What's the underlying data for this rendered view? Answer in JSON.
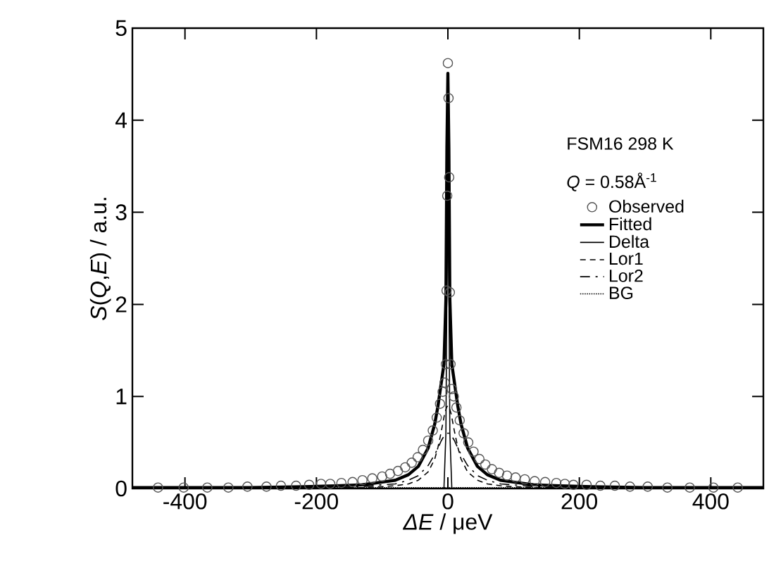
{
  "chart_data": {
    "type": "line",
    "xlabel": "*ΔE* / μeV",
    "ylabel": "*S*(*Q*,*E*) / a.u.",
    "legend_title": "FSM16 298 K",
    "annotations": [
      "*Q* = 0.58Å$^{-1}$"
    ],
    "xlim": [
      -480,
      480
    ],
    "ylim": [
      0,
      5
    ],
    "xticks": [
      -400,
      -200,
      0,
      200,
      400
    ],
    "yticks": [
      0,
      1,
      2,
      3,
      4,
      5
    ],
    "grid": false,
    "legend": "right",
    "series": [
      {
        "name": "Observed",
        "type": "scatter",
        "marker": "circle",
        "color": "#555555",
        "x": [
          -441,
          -402,
          -366,
          -334,
          -305,
          -276,
          -254,
          -231,
          -211,
          -193,
          -179,
          -162,
          -145,
          -130,
          -115,
          -100,
          -88,
          -76,
          -65,
          -55,
          -46,
          -38,
          -30,
          -23,
          -17,
          -12,
          -8,
          -5,
          -3,
          -2,
          -1,
          0,
          1,
          2,
          3,
          4,
          6,
          9,
          13,
          18,
          24,
          31,
          39,
          48,
          57,
          67,
          78,
          90,
          103,
          117,
          132,
          148,
          165,
          178,
          191,
          211,
          232,
          254,
          277,
          304,
          334,
          368,
          404,
          441
        ],
        "values": [
          0.01,
          0.01,
          0.01,
          0.01,
          0.02,
          0.02,
          0.03,
          0.03,
          0.04,
          0.05,
          0.05,
          0.06,
          0.07,
          0.09,
          0.11,
          0.13,
          0.16,
          0.19,
          0.23,
          0.28,
          0.34,
          0.42,
          0.52,
          0.63,
          0.77,
          0.92,
          1.05,
          1.15,
          1.35,
          2.15,
          3.18,
          4.62,
          4.24,
          3.38,
          2.13,
          1.35,
          1.08,
          1.0,
          0.88,
          0.74,
          0.6,
          0.5,
          0.4,
          0.32,
          0.26,
          0.21,
          0.17,
          0.14,
          0.12,
          0.1,
          0.08,
          0.07,
          0.06,
          0.05,
          0.04,
          0.04,
          0.03,
          0.03,
          0.02,
          0.02,
          0.01,
          0.01,
          0.01,
          0.01
        ]
      },
      {
        "name": "Fitted",
        "line_style": "solid",
        "color": "#000000",
        "x": [
          -480,
          -400,
          -300,
          -220,
          -170,
          -130,
          -100,
          -80,
          -60,
          -45,
          -30,
          -20,
          -15,
          -10,
          -6,
          -3,
          -1.5,
          0,
          1.5,
          3,
          6,
          10,
          15,
          20,
          30,
          45,
          60,
          80,
          100,
          130,
          170,
          220,
          300,
          400,
          480
        ],
        "values": [
          0.01,
          0.01,
          0.01,
          0.02,
          0.03,
          0.04,
          0.07,
          0.09,
          0.15,
          0.24,
          0.44,
          0.7,
          0.9,
          1.15,
          1.35,
          2.06,
          3.7,
          4.51,
          3.7,
          2.06,
          1.35,
          1.15,
          0.9,
          0.7,
          0.44,
          0.24,
          0.15,
          0.09,
          0.07,
          0.04,
          0.03,
          0.02,
          0.01,
          0.01,
          0.01
        ]
      },
      {
        "name": "Delta",
        "line_style": "solid",
        "color": "#000000",
        "x": [
          -480,
          -6,
          -3,
          -1.5,
          0,
          1.5,
          3,
          6,
          480
        ],
        "values": [
          0,
          0,
          0.6,
          2.2,
          3.0,
          2.2,
          0.6,
          0,
          0
        ]
      },
      {
        "name": "Lor1",
        "line_style": "dashed",
        "color": "#000000",
        "x": [
          -480,
          -400,
          -300,
          -220,
          -170,
          -130,
          -100,
          -80,
          -60,
          -45,
          -30,
          -20,
          -15,
          -10,
          -5,
          -2,
          0,
          2,
          5,
          10,
          15,
          20,
          30,
          45,
          60,
          80,
          100,
          130,
          170,
          220,
          300,
          400,
          480
        ],
        "values": [
          0,
          0,
          0,
          0,
          0.01,
          0.01,
          0.02,
          0.03,
          0.05,
          0.09,
          0.18,
          0.32,
          0.45,
          0.62,
          0.81,
          0.88,
          0.9,
          0.88,
          0.81,
          0.62,
          0.45,
          0.32,
          0.18,
          0.09,
          0.05,
          0.03,
          0.02,
          0.01,
          0.01,
          0,
          0,
          0,
          0
        ]
      },
      {
        "name": "Lor2",
        "line_style": "dashdot",
        "color": "#000000",
        "x": [
          -480,
          -400,
          -300,
          -220,
          -170,
          -130,
          -100,
          -80,
          -60,
          -45,
          -30,
          -20,
          -15,
          -10,
          -5,
          -2,
          0,
          2,
          5,
          10,
          15,
          20,
          30,
          45,
          60,
          80,
          100,
          130,
          170,
          220,
          300,
          400,
          480
        ],
        "values": [
          0,
          0,
          0,
          0.01,
          0.01,
          0.02,
          0.04,
          0.05,
          0.09,
          0.14,
          0.25,
          0.37,
          0.44,
          0.52,
          0.58,
          0.6,
          0.6,
          0.6,
          0.58,
          0.52,
          0.44,
          0.37,
          0.25,
          0.14,
          0.09,
          0.05,
          0.04,
          0.02,
          0.01,
          0.01,
          0,
          0,
          0
        ]
      },
      {
        "name": "BG",
        "line_style": "dotted",
        "color": "#000000",
        "x": [
          -480,
          480
        ],
        "values": [
          0.01,
          0.01
        ]
      }
    ]
  }
}
